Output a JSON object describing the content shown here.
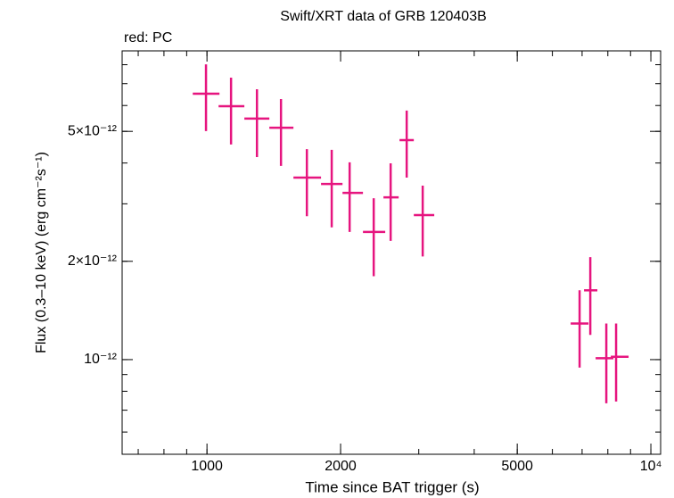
{
  "chart_data": {
    "type": "errorbar-scatter",
    "title": "Swift/XRT data of GRB 120403B",
    "subtitle": "red: PC",
    "x_label": "Time since BAT trigger (s)",
    "y_label": "Flux (0.3–10 keV) (erg cm⁻²s⁻¹)",
    "log_x": true,
    "log_y": true,
    "xlim": [
      644,
      10520
    ],
    "ylim": [
      5.13e-13,
      8.82e-12
    ],
    "xticks": [
      1000,
      2000,
      5000,
      {
        "value": 10000,
        "label": "10⁴"
      }
    ],
    "yticks": [
      {
        "value": 1e-12,
        "label": "10⁻¹²"
      },
      {
        "value": 2e-12,
        "label": "2×10⁻¹²"
      },
      {
        "value": 5e-12,
        "label": "5×10⁻¹²"
      }
    ],
    "series": [
      {
        "color": "#e6157f",
        "x": [
          995,
          1133,
          1296,
          1468,
          1679,
          1910,
          2096,
          2375,
          2593,
          2818,
          3062,
          6910,
          7304,
          7937,
          8350
        ],
        "x_low": [
          929,
          1062,
          1214,
          1382,
          1566,
          1807,
          2020,
          2246,
          2498,
          2715,
          2924,
          6597,
          7070,
          7508,
          8123
        ],
        "x_high": [
          1067,
          1214,
          1382,
          1566,
          1807,
          2020,
          2246,
          2521,
          2703,
          2924,
          3251,
          7235,
          7577,
          8237,
          8909
        ],
        "values": [
          6.52e-12,
          5.97e-12,
          5.47e-12,
          5.13e-12,
          3.61e-12,
          3.45e-12,
          3.24e-12,
          2.46e-12,
          3.14e-12,
          4.7e-12,
          2.77e-12,
          1.29e-12,
          1.63e-12,
          1.01e-12,
          1.02e-12
        ],
        "y_low": [
          5.01e-12,
          4.56e-12,
          4.17e-12,
          3.92e-12,
          2.75e-12,
          2.54e-12,
          2.46e-12,
          1.8e-12,
          2.31e-12,
          3.61e-12,
          2.07e-12,
          9.45e-13,
          1.19e-12,
          7.35e-13,
          7.44e-13
        ],
        "y_high": [
          8.02e-12,
          7.3e-12,
          6.73e-12,
          6.28e-12,
          4.41e-12,
          4.39e-12,
          4.02e-12,
          3.12e-12,
          3.99e-12,
          5.79e-12,
          3.41e-12,
          1.63e-12,
          2.06e-12,
          1.29e-12,
          1.29e-12
        ]
      }
    ]
  }
}
